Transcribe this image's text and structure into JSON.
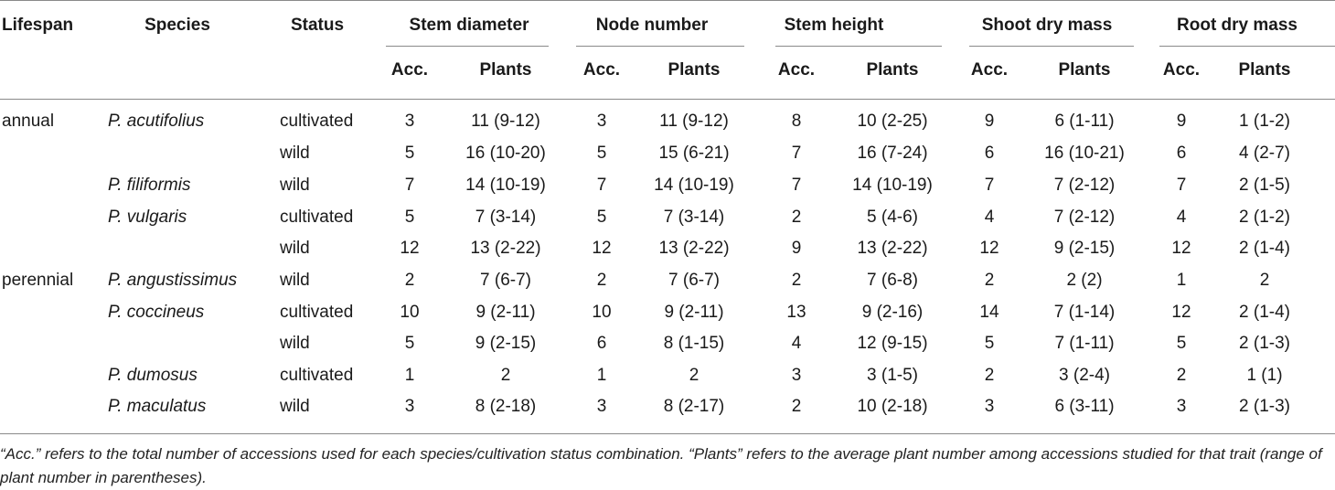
{
  "table": {
    "headers": {
      "lifespan": "Lifespan",
      "species": "Species",
      "status": "Status",
      "groups": [
        "Stem diameter",
        "Node number",
        "Stem height",
        "Shoot dry mass",
        "Root dry mass"
      ],
      "sub": [
        "Acc.",
        "Plants"
      ]
    },
    "rows": [
      {
        "lifespan": "annual",
        "species": "P. acutifolius",
        "status": "cultivated",
        "values": [
          "3",
          "11 (9-12)",
          "3",
          "11 (9-12)",
          "8",
          "10 (2-25)",
          "9",
          "6 (1-11)",
          "9",
          "1 (1-2)"
        ]
      },
      {
        "lifespan": "",
        "species": "",
        "status": "wild",
        "values": [
          "5",
          "16 (10-20)",
          "5",
          "15 (6-21)",
          "7",
          "16 (7-24)",
          "6",
          "16 (10-21)",
          "6",
          "4 (2-7)"
        ]
      },
      {
        "lifespan": "",
        "species": "P. filiformis",
        "status": "wild",
        "values": [
          "7",
          "14 (10-19)",
          "7",
          "14 (10-19)",
          "7",
          "14 (10-19)",
          "7",
          "7 (2-12)",
          "7",
          "2 (1-5)"
        ]
      },
      {
        "lifespan": "",
        "species": "P. vulgaris",
        "status": "cultivated",
        "values": [
          "5",
          "7 (3-14)",
          "5",
          "7 (3-14)",
          "2",
          "5 (4-6)",
          "4",
          "7 (2-12)",
          "4",
          "2 (1-2)"
        ]
      },
      {
        "lifespan": "",
        "species": "",
        "status": "wild",
        "values": [
          "12",
          "13 (2-22)",
          "12",
          "13 (2-22)",
          "9",
          "13 (2-22)",
          "12",
          "9 (2-15)",
          "12",
          "2 (1-4)"
        ]
      },
      {
        "lifespan": "perennial",
        "species": "P. angustissimus",
        "status": "wild",
        "values": [
          "2",
          "7 (6-7)",
          "2",
          "7 (6-7)",
          "2",
          "7 (6-8)",
          "2",
          "2 (2)",
          "1",
          "2"
        ]
      },
      {
        "lifespan": "",
        "species": "P. coccineus",
        "status": "cultivated",
        "values": [
          "10",
          "9 (2-11)",
          "10",
          "9 (2-11)",
          "13",
          "9 (2-16)",
          "14",
          "7 (1-14)",
          "12",
          "2 (1-4)"
        ]
      },
      {
        "lifespan": "",
        "species": "",
        "status": "wild",
        "values": [
          "5",
          "9 (2-15)",
          "6",
          "8 (1-15)",
          "4",
          "12 (9-15)",
          "5",
          "7 (1-11)",
          "5",
          "2 (1-3)"
        ]
      },
      {
        "lifespan": "",
        "species": "P. dumosus",
        "status": "cultivated",
        "values": [
          "1",
          "2",
          "1",
          "2",
          "3",
          "3 (1-5)",
          "2",
          "3 (2-4)",
          "2",
          "1 (1)"
        ]
      },
      {
        "lifespan": "",
        "species": "P. maculatus",
        "status": "wild",
        "values": [
          "3",
          "8 (2-18)",
          "3",
          "8 (2-17)",
          "2",
          "10 (2-18)",
          "3",
          "6 (3-11)",
          "3",
          "2 (1-3)"
        ]
      }
    ]
  },
  "footnote": "“Acc.” refers to the total number of accessions used for each species/cultivation status combination. “Plants” refers to the average plant number among accessions studied for that trait (range of plant number in parentheses)."
}
